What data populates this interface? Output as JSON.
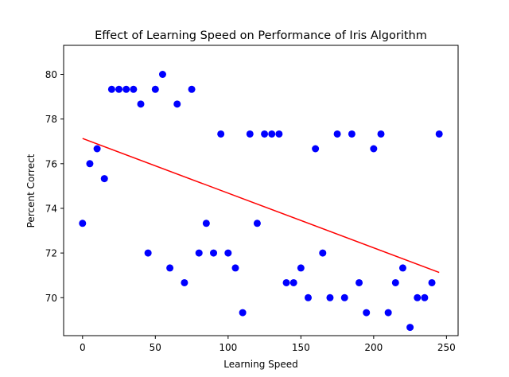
{
  "chart_data": {
    "type": "scatter",
    "title": "Effect of Learning Speed on Performance of Iris Algorithm",
    "xlabel": "Learning Speed",
    "ylabel": "Percent Correct",
    "xlim": [
      -13,
      258
    ],
    "ylim": [
      68.3,
      81.3
    ],
    "xticks": [
      0,
      50,
      100,
      150,
      200,
      250
    ],
    "yticks": [
      70,
      72,
      74,
      76,
      78,
      80
    ],
    "grid": false,
    "marker_color": "#0000ff",
    "fit_line_color": "#ff0000",
    "points": [
      [
        0,
        73.33
      ],
      [
        5,
        76.0
      ],
      [
        10,
        76.67
      ],
      [
        15,
        75.33
      ],
      [
        20,
        79.33
      ],
      [
        25,
        79.33
      ],
      [
        30,
        79.33
      ],
      [
        35,
        79.33
      ],
      [
        40,
        78.67
      ],
      [
        45,
        72.0
      ],
      [
        50,
        79.33
      ],
      [
        55,
        80.0
      ],
      [
        60,
        71.33
      ],
      [
        65,
        78.67
      ],
      [
        70,
        70.67
      ],
      [
        75,
        79.33
      ],
      [
        80,
        72.0
      ],
      [
        85,
        73.33
      ],
      [
        90,
        72.0
      ],
      [
        95,
        77.33
      ],
      [
        100,
        72.0
      ],
      [
        105,
        71.33
      ],
      [
        110,
        69.33
      ],
      [
        115,
        77.33
      ],
      [
        120,
        73.33
      ],
      [
        125,
        77.33
      ],
      [
        130,
        77.33
      ],
      [
        135,
        77.33
      ],
      [
        140,
        70.67
      ],
      [
        145,
        70.67
      ],
      [
        150,
        71.33
      ],
      [
        155,
        70.0
      ],
      [
        160,
        76.67
      ],
      [
        165,
        72.0
      ],
      [
        170,
        70.0
      ],
      [
        175,
        77.33
      ],
      [
        180,
        70.0
      ],
      [
        185,
        77.33
      ],
      [
        190,
        70.67
      ],
      [
        195,
        69.33
      ],
      [
        200,
        76.67
      ],
      [
        205,
        77.33
      ],
      [
        210,
        69.33
      ],
      [
        215,
        70.67
      ],
      [
        220,
        71.33
      ],
      [
        225,
        68.67
      ],
      [
        230,
        70.0
      ],
      [
        235,
        70.0
      ],
      [
        240,
        70.67
      ],
      [
        245,
        77.33
      ]
    ],
    "fit_line": [
      [
        0,
        77.13
      ],
      [
        245,
        71.13
      ]
    ]
  }
}
